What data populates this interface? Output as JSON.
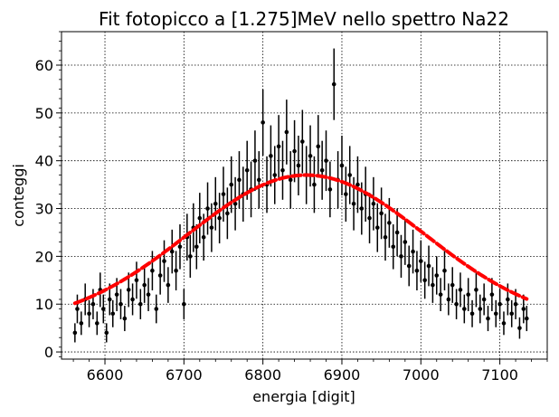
{
  "chart_data": {
    "type": "scatter",
    "title": "Fit fotopicco a [1.275]MeV nello spettro Na22",
    "xlabel": "energia [digit]",
    "ylabel": "conteggi",
    "xlim": [
      6545,
      7160
    ],
    "ylim": [
      -1.5,
      67
    ],
    "xticks": [
      6600,
      6700,
      6800,
      6900,
      7000,
      7100
    ],
    "yticks": [
      0,
      10,
      20,
      30,
      40,
      50,
      60
    ],
    "grid": true,
    "series": [
      {
        "kind": "data-points-with-errorbars",
        "color": "#000000",
        "x_range": [
          6562,
          7134
        ],
        "points": [
          {
            "x": 6562,
            "y": 4
          },
          {
            "x": 6565,
            "y": 9
          },
          {
            "x": 6570,
            "y": 6
          },
          {
            "x": 6575,
            "y": 11
          },
          {
            "x": 6580,
            "y": 8
          },
          {
            "x": 6585,
            "y": 10
          },
          {
            "x": 6590,
            "y": 6
          },
          {
            "x": 6594,
            "y": 13
          },
          {
            "x": 6598,
            "y": 9
          },
          {
            "x": 6602,
            "y": 4
          },
          {
            "x": 6606,
            "y": 11
          },
          {
            "x": 6610,
            "y": 8
          },
          {
            "x": 6615,
            "y": 12
          },
          {
            "x": 6620,
            "y": 10
          },
          {
            "x": 6625,
            "y": 7
          },
          {
            "x": 6630,
            "y": 13
          },
          {
            "x": 6635,
            "y": 11
          },
          {
            "x": 6640,
            "y": 15
          },
          {
            "x": 6645,
            "y": 10
          },
          {
            "x": 6650,
            "y": 14
          },
          {
            "x": 6655,
            "y": 12
          },
          {
            "x": 6660,
            "y": 17
          },
          {
            "x": 6665,
            "y": 9
          },
          {
            "x": 6670,
            "y": 16
          },
          {
            "x": 6675,
            "y": 19
          },
          {
            "x": 6680,
            "y": 14
          },
          {
            "x": 6685,
            "y": 21
          },
          {
            "x": 6690,
            "y": 17
          },
          {
            "x": 6695,
            "y": 22
          },
          {
            "x": 6700,
            "y": 10
          },
          {
            "x": 6704,
            "y": 24
          },
          {
            "x": 6708,
            "y": 20
          },
          {
            "x": 6712,
            "y": 26
          },
          {
            "x": 6716,
            "y": 22
          },
          {
            "x": 6720,
            "y": 28
          },
          {
            "x": 6725,
            "y": 24
          },
          {
            "x": 6730,
            "y": 30
          },
          {
            "x": 6735,
            "y": 26
          },
          {
            "x": 6740,
            "y": 31
          },
          {
            "x": 6745,
            "y": 28
          },
          {
            "x": 6750,
            "y": 33
          },
          {
            "x": 6755,
            "y": 29
          },
          {
            "x": 6760,
            "y": 35
          },
          {
            "x": 6765,
            "y": 31
          },
          {
            "x": 6770,
            "y": 36
          },
          {
            "x": 6775,
            "y": 33
          },
          {
            "x": 6780,
            "y": 38
          },
          {
            "x": 6785,
            "y": 34
          },
          {
            "x": 6790,
            "y": 40
          },
          {
            "x": 6795,
            "y": 36
          },
          {
            "x": 6800,
            "y": 48
          },
          {
            "x": 6805,
            "y": 35
          },
          {
            "x": 6810,
            "y": 41
          },
          {
            "x": 6815,
            "y": 37
          },
          {
            "x": 6820,
            "y": 43
          },
          {
            "x": 6825,
            "y": 38
          },
          {
            "x": 6830,
            "y": 46
          },
          {
            "x": 6835,
            "y": 36
          },
          {
            "x": 6840,
            "y": 42
          },
          {
            "x": 6845,
            "y": 39
          },
          {
            "x": 6850,
            "y": 44
          },
          {
            "x": 6855,
            "y": 37
          },
          {
            "x": 6860,
            "y": 41
          },
          {
            "x": 6865,
            "y": 35
          },
          {
            "x": 6870,
            "y": 43
          },
          {
            "x": 6875,
            "y": 38
          },
          {
            "x": 6880,
            "y": 40
          },
          {
            "x": 6885,
            "y": 34
          },
          {
            "x": 6890,
            "y": 56
          },
          {
            "x": 6895,
            "y": 36
          },
          {
            "x": 6900,
            "y": 39
          },
          {
            "x": 6905,
            "y": 33
          },
          {
            "x": 6910,
            "y": 37
          },
          {
            "x": 6915,
            "y": 31
          },
          {
            "x": 6920,
            "y": 35
          },
          {
            "x": 6925,
            "y": 30
          },
          {
            "x": 6930,
            "y": 33
          },
          {
            "x": 6935,
            "y": 28
          },
          {
            "x": 6940,
            "y": 31
          },
          {
            "x": 6945,
            "y": 26
          },
          {
            "x": 6950,
            "y": 29
          },
          {
            "x": 6955,
            "y": 24
          },
          {
            "x": 6960,
            "y": 27
          },
          {
            "x": 6965,
            "y": 22
          },
          {
            "x": 6970,
            "y": 25
          },
          {
            "x": 6975,
            "y": 20
          },
          {
            "x": 6980,
            "y": 23
          },
          {
            "x": 6985,
            "y": 18
          },
          {
            "x": 6990,
            "y": 21
          },
          {
            "x": 6995,
            "y": 17
          },
          {
            "x": 7000,
            "y": 19
          },
          {
            "x": 7005,
            "y": 15
          },
          {
            "x": 7010,
            "y": 18
          },
          {
            "x": 7015,
            "y": 14
          },
          {
            "x": 7020,
            "y": 16
          },
          {
            "x": 7025,
            "y": 12
          },
          {
            "x": 7030,
            "y": 17
          },
          {
            "x": 7035,
            "y": 11
          },
          {
            "x": 7040,
            "y": 14
          },
          {
            "x": 7045,
            "y": 10
          },
          {
            "x": 7050,
            "y": 13
          },
          {
            "x": 7055,
            "y": 9
          },
          {
            "x": 7060,
            "y": 12
          },
          {
            "x": 7065,
            "y": 8
          },
          {
            "x": 7070,
            "y": 13
          },
          {
            "x": 7075,
            "y": 9
          },
          {
            "x": 7080,
            "y": 11
          },
          {
            "x": 7085,
            "y": 7
          },
          {
            "x": 7090,
            "y": 12
          },
          {
            "x": 7095,
            "y": 8
          },
          {
            "x": 7100,
            "y": 10
          },
          {
            "x": 7105,
            "y": 6
          },
          {
            "x": 7110,
            "y": 11
          },
          {
            "x": 7115,
            "y": 8
          },
          {
            "x": 7120,
            "y": 10
          },
          {
            "x": 7125,
            "y": 5
          },
          {
            "x": 7130,
            "y": 9
          },
          {
            "x": 7134,
            "y": 7
          }
        ]
      },
      {
        "kind": "gaussian-fit-curve",
        "color": "#ff0000",
        "x_range": [
          6562,
          7134
        ],
        "peak": 37,
        "center": 6855,
        "sigma": 150,
        "offset": 5.5,
        "samples": [
          {
            "x": 6562,
            "y": 7.5
          },
          {
            "x": 6600,
            "y": 9.5
          },
          {
            "x": 6650,
            "y": 13.5
          },
          {
            "x": 6700,
            "y": 20
          },
          {
            "x": 6750,
            "y": 27.5
          },
          {
            "x": 6800,
            "y": 34
          },
          {
            "x": 6855,
            "y": 37
          },
          {
            "x": 6900,
            "y": 35.5
          },
          {
            "x": 6950,
            "y": 29.5
          },
          {
            "x": 7000,
            "y": 21.5
          },
          {
            "x": 7050,
            "y": 14
          },
          {
            "x": 7100,
            "y": 10.5
          },
          {
            "x": 7134,
            "y": 9
          }
        ]
      }
    ]
  }
}
